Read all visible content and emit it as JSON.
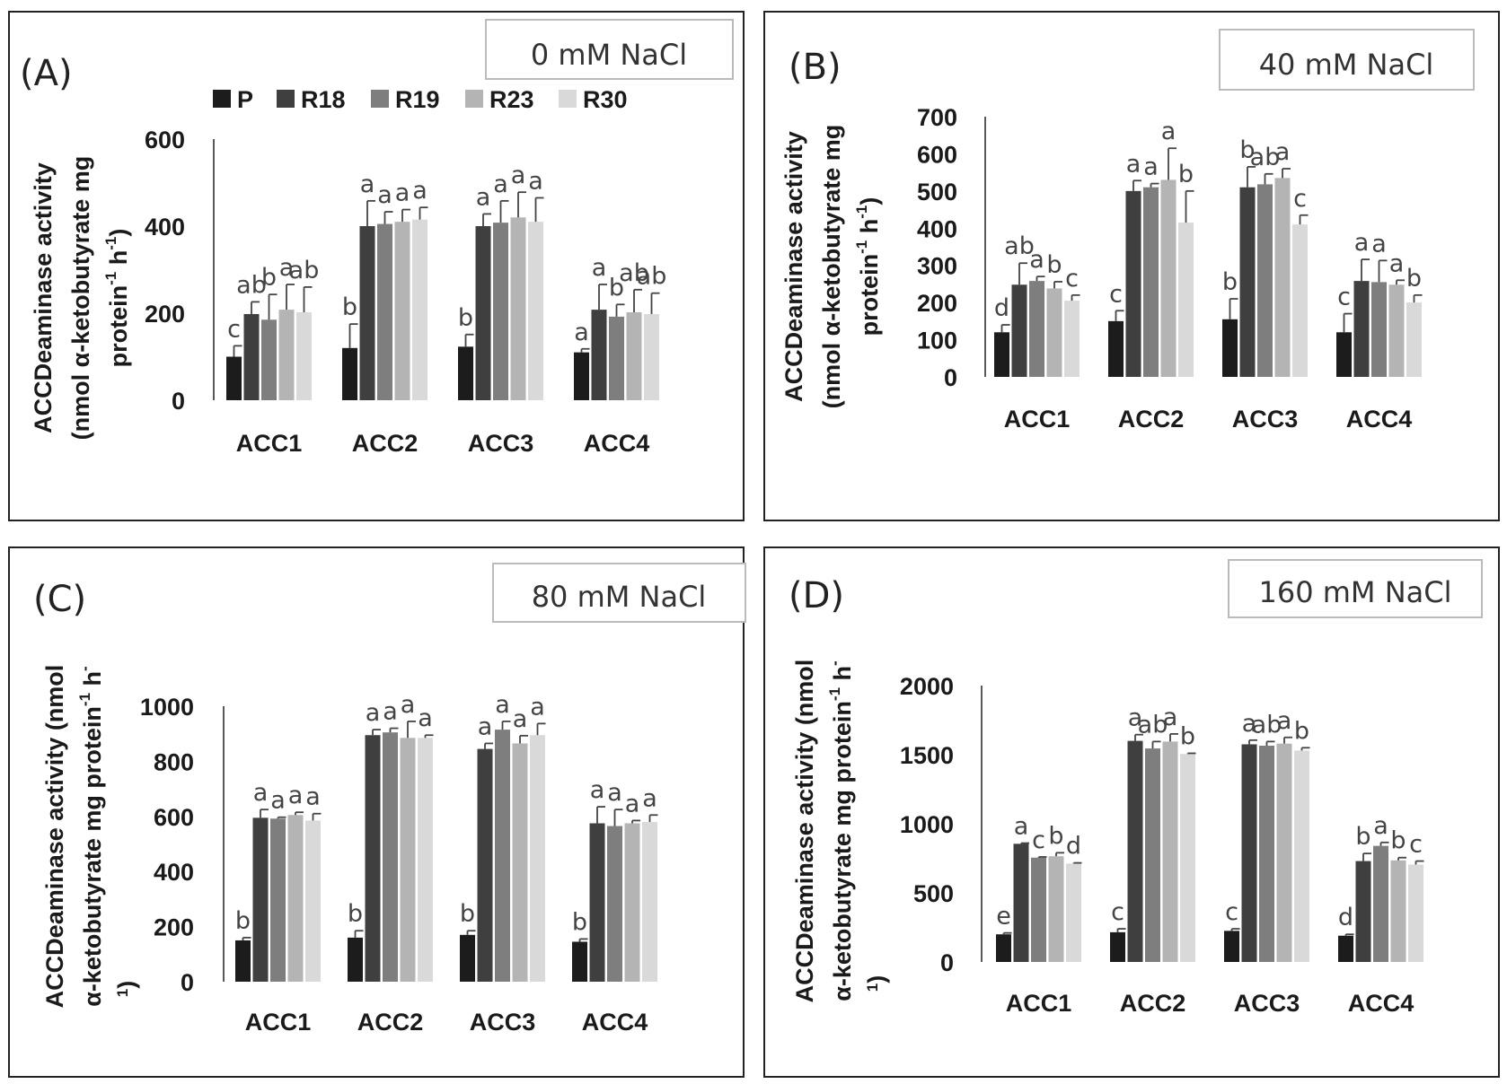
{
  "colors": {
    "series": [
      "#1c1c1c",
      "#3f3f3f",
      "#7e7e7e",
      "#b4b4b4",
      "#d9d9d9"
    ],
    "axis": "#222222",
    "text": "#333333",
    "box_border": "#bbbbbb"
  },
  "legend": [
    "P",
    "R18",
    "R19",
    "R23",
    "R30"
  ],
  "chart_data": [
    {
      "type": "bar",
      "panel_label": "(A)",
      "title": "0 mM NaCl",
      "categories": [
        "ACC1",
        "ACC2",
        "ACC3",
        "ACC4"
      ],
      "ylabel_lines": [
        "ACCDeaminase activity",
        "(nmol α-ketobutyrate mg",
        "protein",
        "-1",
        " h",
        "-1",
        ")"
      ],
      "yticks": [
        "0",
        "200",
        "400",
        "600"
      ],
      "ylim": [
        0,
        600
      ],
      "series": [
        {
          "name": "P",
          "values": [
            100,
            120,
            123,
            110
          ],
          "errors": [
            25,
            55,
            28,
            8
          ]
        },
        {
          "name": "R18",
          "values": [
            198,
            400,
            400,
            208
          ],
          "errors": [
            28,
            58,
            28,
            58
          ]
        },
        {
          "name": "R19",
          "values": [
            185,
            405,
            408,
            192
          ],
          "errors": [
            58,
            28,
            50,
            28
          ]
        },
        {
          "name": "R23",
          "values": [
            208,
            410,
            420,
            202
          ],
          "errors": [
            58,
            28,
            58,
            52
          ]
        },
        {
          "name": "R30",
          "values": [
            202,
            415,
            410,
            198
          ],
          "errors": [
            58,
            28,
            55,
            48
          ]
        }
      ],
      "letters": [
        [
          "c",
          "ab",
          "b",
          "a",
          "ab"
        ],
        [
          "b",
          "a",
          "a",
          "a",
          "a"
        ],
        [
          "b",
          "a",
          "a",
          "a",
          "a"
        ],
        [
          "a",
          "a",
          "b",
          "ab",
          "ab"
        ]
      ]
    },
    {
      "type": "bar",
      "panel_label": "(B)",
      "title": "40 mM NaCl",
      "categories": [
        "ACC1",
        "ACC2",
        "ACC3",
        "ACC4"
      ],
      "ylabel_lines": [
        "ACCDeaminase activity",
        "(nmol α-ketobutyrate mg",
        "protein",
        "-1",
        " h",
        "-1",
        ")"
      ],
      "yticks": [
        "0",
        "100",
        "200",
        "300",
        "400",
        "500",
        "600",
        "700"
      ],
      "ylim": [
        0,
        700
      ],
      "series": [
        {
          "name": "P",
          "values": [
            120,
            150,
            155,
            120
          ],
          "errors": [
            20,
            28,
            55,
            50
          ]
        },
        {
          "name": "R18",
          "values": [
            248,
            500,
            510,
            258
          ],
          "errors": [
            58,
            28,
            55,
            58
          ]
        },
        {
          "name": "R19",
          "values": [
            258,
            510,
            518,
            255
          ],
          "errors": [
            12,
            10,
            28,
            58
          ]
        },
        {
          "name": "R23",
          "values": [
            238,
            530,
            535,
            248
          ],
          "errors": [
            18,
            85,
            25,
            12
          ]
        },
        {
          "name": "R30",
          "values": [
            205,
            415,
            410,
            200
          ],
          "errors": [
            15,
            85,
            25,
            20
          ]
        }
      ],
      "letters": [
        [
          "d",
          "ab",
          "a",
          "b",
          "c"
        ],
        [
          "c",
          "a",
          "a",
          "a",
          "b"
        ],
        [
          "b",
          "b",
          "ab",
          "a",
          "c"
        ],
        [
          "c",
          "a",
          "a",
          "a",
          "b"
        ]
      ]
    },
    {
      "type": "bar",
      "panel_label": "(C)",
      "title": "80 mM NaCl",
      "categories": [
        "ACC1",
        "ACC2",
        "ACC3",
        "ACC4"
      ],
      "ylabel_lines": [
        "ACCDeaminase activity (nmol",
        "α-ketobutyrate mg protein",
        "-1",
        " h",
        "-",
        "1",
        ")"
      ],
      "yticks": [
        "0",
        "200",
        "400",
        "600",
        "800",
        "1000"
      ],
      "ylim": [
        0,
        1000
      ],
      "series": [
        {
          "name": "P",
          "values": [
            150,
            160,
            170,
            145
          ],
          "errors": [
            10,
            25,
            15,
            10
          ]
        },
        {
          "name": "R18",
          "values": [
            595,
            895,
            845,
            575
          ],
          "errors": [
            30,
            20,
            20,
            60
          ]
        },
        {
          "name": "R19",
          "values": [
            592,
            905,
            915,
            565
          ],
          "errors": [
            5,
            15,
            30,
            60
          ]
        },
        {
          "name": "R23",
          "values": [
            605,
            885,
            865,
            575
          ],
          "errors": [
            10,
            60,
            28,
            10
          ]
        },
        {
          "name": "R30",
          "values": [
            585,
            885,
            895,
            580
          ],
          "errors": [
            25,
            10,
            42,
            25
          ]
        }
      ],
      "letters": [
        [
          "b",
          "a",
          "a",
          "a",
          "a"
        ],
        [
          "b",
          "a",
          "a",
          "a",
          "a"
        ],
        [
          "b",
          "a",
          "a",
          "a",
          "a"
        ],
        [
          "b",
          "a",
          "a",
          "a",
          "a"
        ]
      ]
    },
    {
      "type": "bar",
      "panel_label": "(D)",
      "title": "160 mM NaCl",
      "categories": [
        "ACC1",
        "ACC2",
        "ACC3",
        "ACC4"
      ],
      "ylabel_lines": [
        "ACCDeaminase activity (nmol",
        "α-ketobutyrate mg protein",
        "-1",
        " h",
        "-",
        "1",
        ")"
      ],
      "yticks": [
        "0",
        "500",
        "1000",
        "1500",
        "2000"
      ],
      "ylim": [
        0,
        2000
      ],
      "series": [
        {
          "name": "P",
          "values": [
            200,
            215,
            225,
            190
          ],
          "errors": [
            10,
            25,
            15,
            10
          ]
        },
        {
          "name": "R18",
          "values": [
            855,
            1600,
            1575,
            730
          ],
          "errors": [
            5,
            45,
            30,
            55
          ]
        },
        {
          "name": "R19",
          "values": [
            755,
            1545,
            1565,
            840
          ],
          "errors": [
            5,
            50,
            30,
            25
          ]
        },
        {
          "name": "R23",
          "values": [
            765,
            1595,
            1580,
            735
          ],
          "errors": [
            25,
            55,
            45,
            20
          ]
        },
        {
          "name": "R30",
          "values": [
            712,
            1505,
            1530,
            705
          ],
          "errors": [
            5,
            5,
            20,
            25
          ]
        }
      ],
      "letters": [
        [
          "e",
          "a",
          "c",
          "b",
          "d"
        ],
        [
          "c",
          "a",
          "ab",
          "a",
          "b"
        ],
        [
          "c",
          "a",
          "ab",
          "a",
          "b"
        ],
        [
          "d",
          "b",
          "a",
          "b",
          "c"
        ]
      ]
    }
  ]
}
